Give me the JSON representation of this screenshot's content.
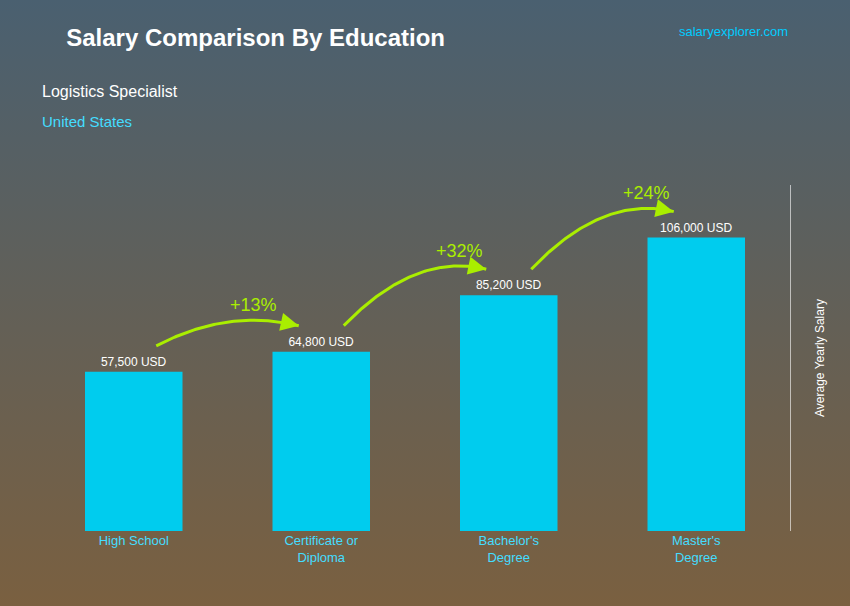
{
  "chart_data": {
    "type": "bar",
    "title": "Salary Comparison By Education",
    "subtitle": [
      "Logistics Specialist",
      "United States"
    ],
    "ylabel": "Average Yearly Salary",
    "categories": [
      "High School",
      "Certificate or\nDiploma",
      "Bachelor's\nDegree",
      "Master's\nDegree"
    ],
    "values": [
      57500,
      64800,
      85200,
      106000
    ],
    "value_labels": [
      "57,500 USD",
      "64,800 USD",
      "85,200 USD",
      "106,000 USD"
    ],
    "data_labels": true,
    "color": "#00CCEE",
    "ylim": [
      0,
      125000
    ],
    "yticks": [],
    "tick_labels": "x",
    "grid": false,
    "annotations": [
      {
        "text": "+13%",
        "from": "High School",
        "to": "Certificate or\nDiploma",
        "color": "#AAEE00"
      },
      {
        "text": "+32%",
        "from": "Certificate or\nDiploma",
        "to": "Bachelor's\nDegree",
        "color": "#AAEE00"
      },
      {
        "text": "+24%",
        "from": "Bachelor's\nDegree",
        "to": "Master's\nDegree",
        "color": "#AAEE00"
      },
      {
        "text": "salaryexplorer.com"
      }
    ]
  }
}
